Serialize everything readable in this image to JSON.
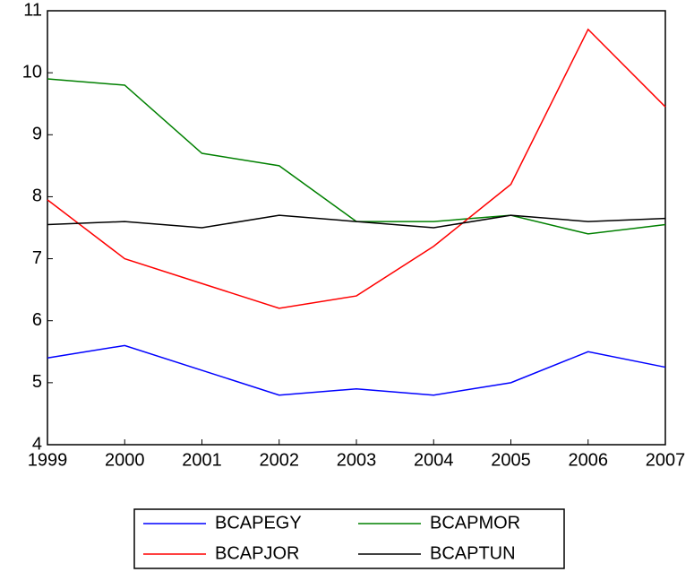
{
  "chart_data": {
    "type": "line",
    "x": [
      1999,
      2000,
      2001,
      2002,
      2003,
      2004,
      2005,
      2006,
      2007
    ],
    "xlim": [
      1999,
      2007
    ],
    "xticks": [
      1999,
      2000,
      2001,
      2002,
      2003,
      2004,
      2005,
      2006,
      2007
    ],
    "ylim": [
      4,
      11
    ],
    "yticks": [
      4,
      5,
      6,
      7,
      8,
      9,
      10,
      11
    ],
    "grid": false,
    "legend": "bottom",
    "series": [
      {
        "name": "BCAPEGY",
        "color": "#0000ff",
        "values": [
          5.4,
          5.6,
          5.2,
          4.8,
          4.9,
          4.8,
          5.0,
          5.5,
          5.25
        ]
      },
      {
        "name": "BCAPMOR",
        "color": "#008000",
        "values": [
          9.9,
          9.8,
          8.7,
          8.5,
          7.6,
          7.6,
          7.7,
          7.4,
          7.55
        ]
      },
      {
        "name": "BCAPJOR",
        "color": "#ff0000",
        "values": [
          7.95,
          7.0,
          6.6,
          6.2,
          6.4,
          7.2,
          8.2,
          10.7,
          9.45
        ]
      },
      {
        "name": "BCAPTUN",
        "color": "#000000",
        "values": [
          7.55,
          7.6,
          7.5,
          7.7,
          7.6,
          7.5,
          7.7,
          7.6,
          7.65
        ]
      }
    ]
  }
}
